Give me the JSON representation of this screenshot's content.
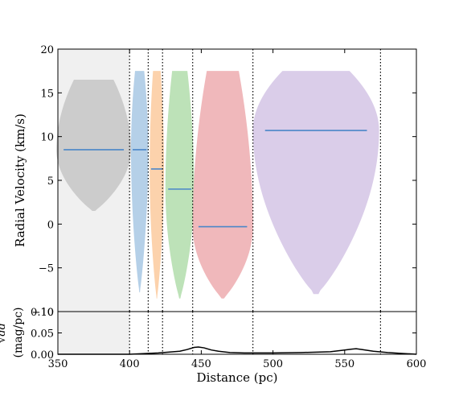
{
  "chart_data": {
    "type": "violin",
    "xlabel": "Distance (pc)",
    "xlim": [
      350,
      600
    ],
    "x_ticks": [
      "350",
      "400",
      "450",
      "500",
      "550",
      "600"
    ],
    "shaded_x_range": [
      350,
      400
    ],
    "boundaries_pc": [
      400,
      413,
      423,
      444,
      486,
      575
    ],
    "top_panel": {
      "ylabel": "Radial Velocity (km/s)",
      "ylim": [
        -10,
        20
      ],
      "y_ticks": [
        "20",
        "15",
        "10",
        "5",
        "0",
        "−5",
        "−10"
      ],
      "violins": [
        {
          "x": 375,
          "y_min": 1.5,
          "y_max": 16.5,
          "median": 8.5,
          "half_width_max": 26,
          "color": "#cccccc"
        },
        {
          "x": 407,
          "y_min": -7.8,
          "y_max": 17.5,
          "median": 8.5,
          "half_width_max": 6,
          "color": "#b5d0e8"
        },
        {
          "x": 419,
          "y_min": -8.5,
          "y_max": 17.5,
          "median": 6.3,
          "half_width_max": 5,
          "color": "#fcd2ac"
        },
        {
          "x": 435,
          "y_min": -8.5,
          "y_max": 17.5,
          "median": 4.0,
          "half_width_max": 10,
          "color": "#bde2b8"
        },
        {
          "x": 465,
          "y_min": -8.5,
          "y_max": 17.5,
          "median": -0.3,
          "half_width_max": 21,
          "color": "#f0b8bb"
        },
        {
          "x": 530,
          "y_min": -8.0,
          "y_max": 17.5,
          "median": 10.7,
          "half_width_max": 44,
          "color": "#dacde9"
        }
      ],
      "median_color": "#4a86c8"
    },
    "bottom_panel": {
      "ylabel": "(mag/pc)",
      "ylabel_math": "√dd′",
      "ylim": [
        0,
        0.1
      ],
      "y_ticks": [
        "0.10",
        "0.05",
        "0.00"
      ],
      "line": {
        "x": [
          350,
          400,
          420,
          435,
          440,
          445,
          448,
          452,
          457,
          462,
          470,
          480,
          500,
          520,
          540,
          550,
          555,
          558,
          562,
          570,
          580,
          590,
          600
        ],
        "y": [
          0.0,
          0.0,
          0.003,
          0.007,
          0.011,
          0.016,
          0.017,
          0.015,
          0.01,
          0.007,
          0.004,
          0.003,
          0.003,
          0.004,
          0.006,
          0.01,
          0.012,
          0.013,
          0.011,
          0.007,
          0.004,
          0.002,
          0.0
        ]
      }
    }
  }
}
